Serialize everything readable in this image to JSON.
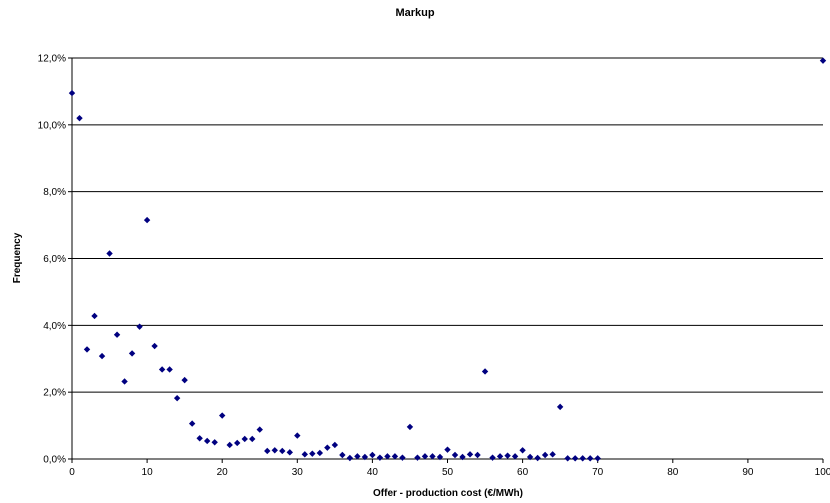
{
  "chart_data": {
    "type": "scatter",
    "title": "Markup",
    "xlabel": "Offer - production cost (€/MWh)",
    "ylabel": "Frequency",
    "xlim": [
      0,
      100
    ],
    "ylim": [
      0,
      12
    ],
    "x_ticks": [
      0,
      10,
      20,
      30,
      40,
      50,
      60,
      70,
      80,
      90,
      100
    ],
    "y_ticks": [
      0,
      2,
      4,
      6,
      8,
      10,
      12
    ],
    "y_tick_labels": [
      "0,0%",
      "2,0%",
      "4,0%",
      "6,0%",
      "8,0%",
      "10,0%",
      "12,0%"
    ],
    "grid": "horizontal",
    "marker_color": "#000080",
    "points": [
      [
        0,
        10.95
      ],
      [
        1,
        10.2
      ],
      [
        2,
        3.28
      ],
      [
        3,
        4.28
      ],
      [
        4,
        3.08
      ],
      [
        5,
        6.15
      ],
      [
        6,
        3.72
      ],
      [
        7,
        2.32
      ],
      [
        8,
        3.16
      ],
      [
        9,
        3.96
      ],
      [
        10,
        7.15
      ],
      [
        11,
        3.38
      ],
      [
        12,
        2.68
      ],
      [
        13,
        2.68
      ],
      [
        14,
        1.82
      ],
      [
        15,
        2.36
      ],
      [
        16,
        1.06
      ],
      [
        17,
        0.62
      ],
      [
        18,
        0.54
      ],
      [
        19,
        0.5
      ],
      [
        20,
        1.3
      ],
      [
        21,
        0.42
      ],
      [
        22,
        0.48
      ],
      [
        23,
        0.6
      ],
      [
        24,
        0.6
      ],
      [
        25,
        0.88
      ],
      [
        26,
        0.24
      ],
      [
        27,
        0.26
      ],
      [
        28,
        0.24
      ],
      [
        29,
        0.2
      ],
      [
        30,
        0.7
      ],
      [
        31,
        0.14
      ],
      [
        32,
        0.16
      ],
      [
        33,
        0.18
      ],
      [
        34,
        0.34
      ],
      [
        35,
        0.42
      ],
      [
        36,
        0.12
      ],
      [
        37,
        0.03
      ],
      [
        38,
        0.08
      ],
      [
        39,
        0.06
      ],
      [
        40,
        0.12
      ],
      [
        41,
        0.04
      ],
      [
        42,
        0.08
      ],
      [
        43,
        0.08
      ],
      [
        44,
        0.04
      ],
      [
        45,
        0.96
      ],
      [
        46,
        0.04
      ],
      [
        47,
        0.08
      ],
      [
        48,
        0.08
      ],
      [
        49,
        0.06
      ],
      [
        50,
        0.28
      ],
      [
        51,
        0.12
      ],
      [
        52,
        0.06
      ],
      [
        53,
        0.14
      ],
      [
        54,
        0.12
      ],
      [
        55,
        2.62
      ],
      [
        56,
        0.04
      ],
      [
        57,
        0.08
      ],
      [
        58,
        0.1
      ],
      [
        59,
        0.08
      ],
      [
        60,
        0.26
      ],
      [
        61,
        0.06
      ],
      [
        62,
        0.03
      ],
      [
        63,
        0.12
      ],
      [
        64,
        0.14
      ],
      [
        65,
        1.56
      ],
      [
        66,
        0.02
      ],
      [
        67,
        0.02
      ],
      [
        68,
        0.02
      ],
      [
        69,
        0.02
      ],
      [
        70,
        0.02
      ],
      [
        100,
        11.92
      ]
    ]
  }
}
